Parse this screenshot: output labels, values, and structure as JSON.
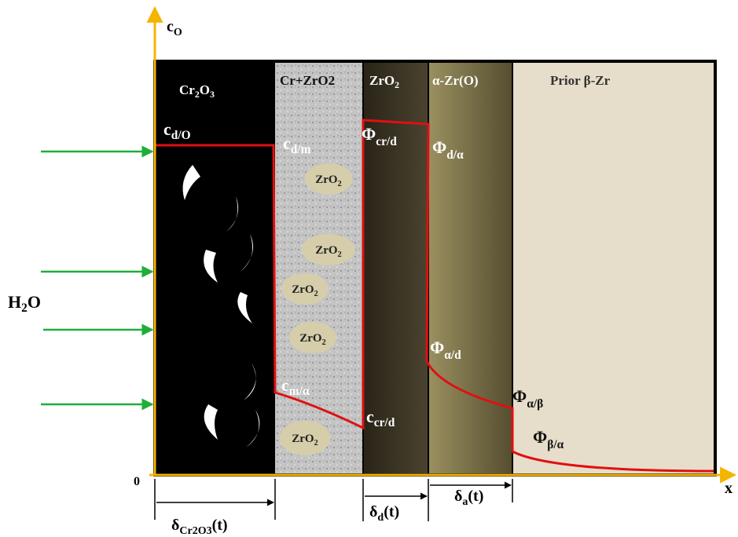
{
  "axis": {
    "y_label": [
      "c",
      "O"
    ],
    "origin": "0",
    "x_label": "x"
  },
  "source": [
    "H",
    "2",
    "O"
  ],
  "layers": [
    [
      "Cr",
      "2",
      "O",
      "3"
    ],
    [
      "Cr+ZrO2"
    ],
    [
      "ZrO",
      "2"
    ],
    [
      "α-Zr(O)"
    ],
    [
      "Prior β-Zr"
    ]
  ],
  "labels": [
    [
      "c",
      "d/O"
    ],
    [
      "c",
      "d/m"
    ],
    [
      "c",
      "m/α"
    ],
    [
      "c",
      "cr/d"
    ],
    [
      "Φ",
      "cr/d"
    ],
    [
      "Φ",
      "d/α"
    ],
    [
      "Φ",
      "α/d"
    ],
    [
      "Φ",
      "α/β"
    ],
    [
      "Φ",
      "β/α"
    ]
  ],
  "bubbles": [
    [
      "ZrO",
      "2"
    ],
    [
      "ZrO",
      "2"
    ],
    [
      "ZrO",
      "2"
    ],
    [
      "ZrO",
      "2"
    ],
    [
      "ZrO",
      "2"
    ]
  ],
  "widths": [
    [
      "δ",
      "Cr2O3",
      "(t)"
    ],
    [
      "δ",
      "d",
      "(t)"
    ],
    [
      "δ",
      "a",
      "(t)"
    ]
  ]
}
